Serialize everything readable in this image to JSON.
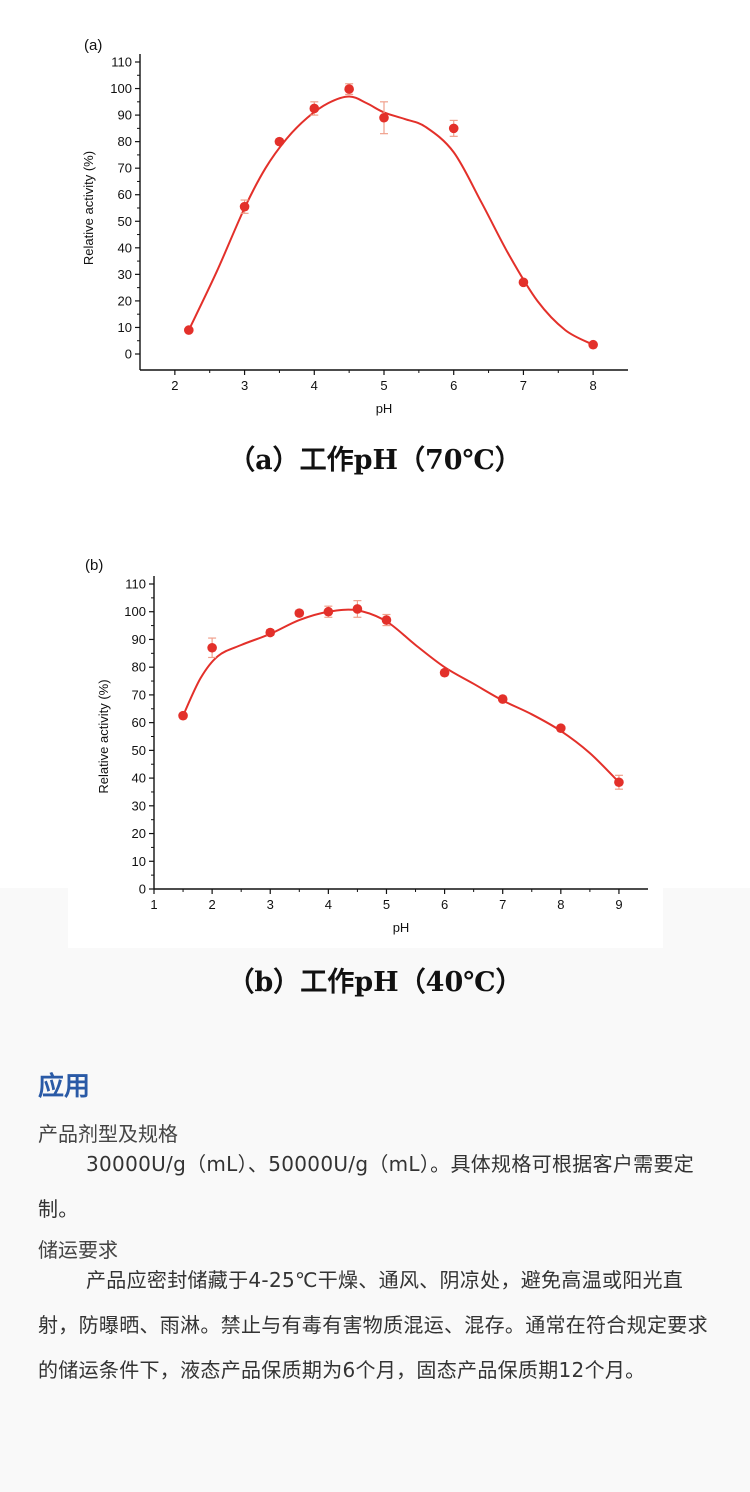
{
  "chart_data": [
    {
      "type": "line",
      "panel_label": "(a)",
      "caption": "（a）工作pH（70℃）",
      "xlabel": "pH",
      "ylabel": "Relative activity (%)",
      "xlim": [
        1.5,
        8.5
      ],
      "ylim": [
        0,
        110
      ],
      "xticks": [
        2,
        3,
        4,
        5,
        6,
        7,
        8
      ],
      "yticks": [
        0,
        10,
        20,
        30,
        40,
        50,
        60,
        70,
        80,
        90,
        100,
        110
      ],
      "series": [
        {
          "x": [
            2.2,
            3,
            3.5,
            4,
            4.5,
            5,
            6,
            7,
            8
          ],
          "y": [
            9,
            55.5,
            80,
            92.5,
            99.8,
            89,
            85,
            27,
            3.5
          ],
          "error": [
            0,
            2.5,
            1,
            2.5,
            2,
            6,
            3,
            0,
            0
          ]
        }
      ],
      "fit_curve": {
        "x": [
          2.2,
          2.6,
          3,
          3.3,
          3.6,
          3.9,
          4.2,
          4.5,
          4.75,
          5,
          5.3,
          5.6,
          6,
          6.4,
          6.8,
          7.2,
          7.6,
          8
        ],
        "y": [
          9,
          31,
          55,
          70,
          81,
          89,
          94.5,
          97,
          94.5,
          91,
          88.5,
          85.5,
          76,
          57,
          37,
          20,
          9,
          3.5
        ]
      }
    },
    {
      "type": "line",
      "panel_label": "(b)",
      "caption": "（b）工作pH（40℃）",
      "xlabel": "pH",
      "ylabel": "Relative activity (%)",
      "xlim": [
        1,
        9.5
      ],
      "ylim": [
        0,
        110
      ],
      "xticks": [
        1,
        2,
        3,
        4,
        5,
        6,
        7,
        8,
        9
      ],
      "yticks": [
        0,
        10,
        20,
        30,
        40,
        50,
        60,
        70,
        80,
        90,
        100,
        110
      ],
      "series": [
        {
          "x": [
            1.5,
            2,
            3,
            3.5,
            4,
            4.5,
            5,
            6,
            7,
            8,
            9
          ],
          "y": [
            62.5,
            87,
            92.5,
            99.5,
            100,
            101,
            97,
            78,
            68.5,
            58,
            38.5
          ],
          "error": [
            0,
            3.5,
            1,
            1,
            2,
            3,
            2,
            1,
            0,
            0,
            2.5
          ]
        }
      ],
      "fit_curve": {
        "x": [
          1.5,
          1.8,
          2.1,
          2.5,
          3,
          3.5,
          4,
          4.5,
          5,
          5.5,
          6,
          6.5,
          7,
          7.5,
          8,
          8.5,
          9
        ],
        "y": [
          62.5,
          76,
          84,
          88,
          92,
          97,
          100,
          100.5,
          96.5,
          88,
          80,
          74,
          68,
          63,
          57,
          49,
          38.5
        ]
      }
    }
  ],
  "application": {
    "title": "应用",
    "spec_heading": "产品剂型及规格",
    "spec_text": "30000U/g（mL）、50000U/g（mL）。具体规格可根据客户需要定制。",
    "storage_heading": "储运要求",
    "storage_text": "产品应密封储藏于4-25℃干燥、通风、阴凉处，避免高温或阳光直射，防曝晒、雨淋。禁止与有毒有害物质混运、混存。通常在符合规定要求的储运条件下，液态产品保质期为6个月，固态产品保质期12个月。"
  },
  "colors": {
    "data": "#e3302a",
    "error_bar": "#f0a08c",
    "accent": "#2a5aa6",
    "axis": "#111111"
  }
}
